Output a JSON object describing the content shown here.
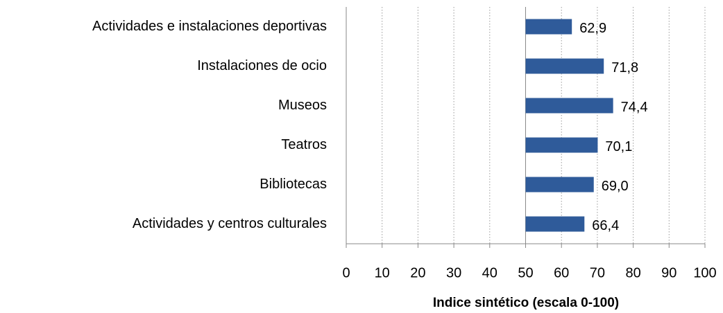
{
  "chart_data": {
    "type": "barh",
    "x_label": "Indice sintético (escala 0-100)",
    "categories": [
      "Actividades e instalaciones deportivas",
      "Instalaciones de ocio",
      "Museos",
      "Teatros",
      "Bibliotecas",
      "Actividades y centros culturales"
    ],
    "values": [
      62.9,
      71.8,
      74.4,
      70.1,
      69.0,
      66.4
    ],
    "value_labels": [
      "62,9",
      "71,8",
      "74,4",
      "70,1",
      "69,0",
      "66,4"
    ],
    "color": "#2f5b9a",
    "baseline": 50,
    "xlim": [
      0,
      100
    ],
    "xticks": [
      0,
      10,
      20,
      30,
      40,
      50,
      60,
      70,
      80,
      90,
      100
    ],
    "grid": true
  }
}
